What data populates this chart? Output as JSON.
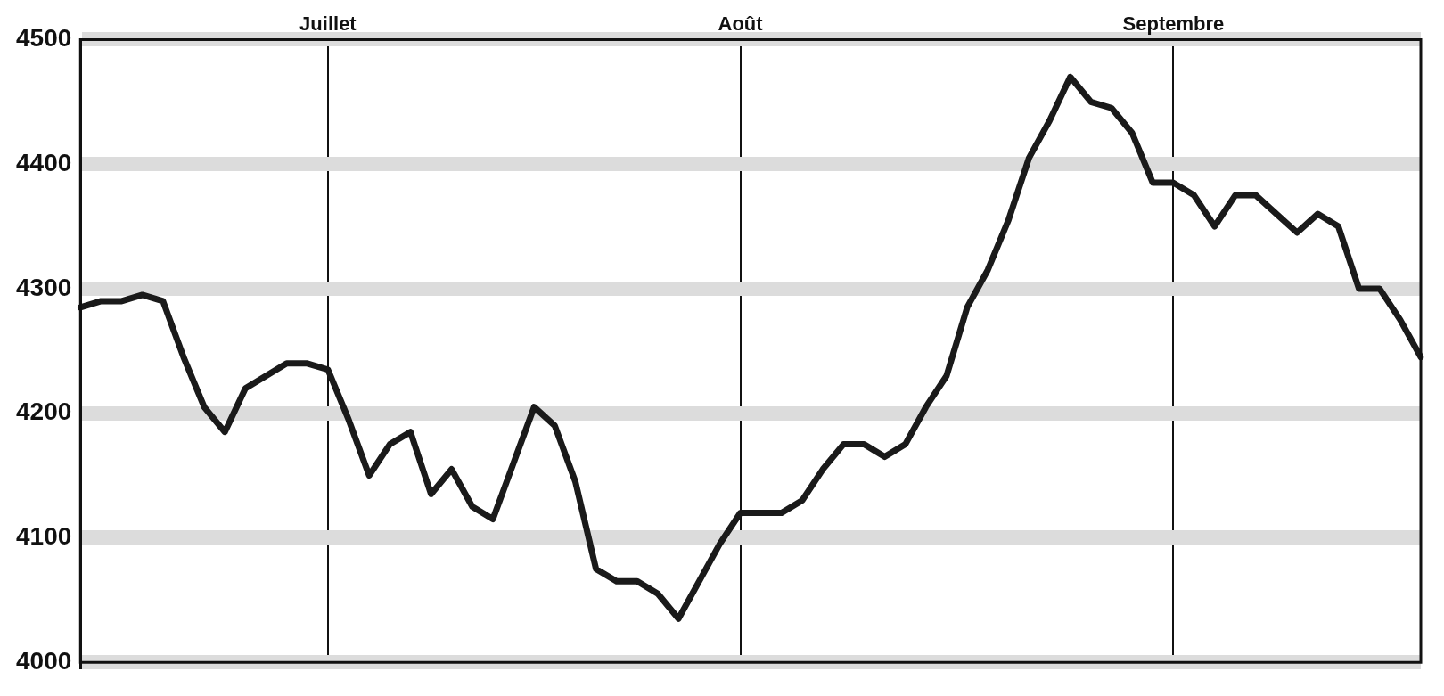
{
  "chart_data": {
    "type": "line",
    "categories": [
      null,
      null,
      null,
      null,
      null,
      null,
      null,
      null,
      null,
      null,
      null,
      null,
      "Juillet",
      null,
      null,
      null,
      null,
      null,
      null,
      null,
      null,
      null,
      null,
      null,
      null,
      null,
      null,
      null,
      null,
      null,
      null,
      null,
      "Août",
      null,
      null,
      null,
      null,
      null,
      null,
      null,
      null,
      null,
      null,
      null,
      null,
      null,
      null,
      null,
      null,
      null,
      null,
      null,
      null,
      "Septembre",
      null,
      null,
      null,
      null,
      null,
      null,
      null,
      null,
      null,
      null,
      null,
      null
    ],
    "series": [
      {
        "color": "#1a1a1a",
        "values": [
          4285,
          4290,
          4290,
          4295,
          4290,
          4245,
          4205,
          4185,
          4220,
          4230,
          4240,
          4240,
          4235,
          4195,
          4150,
          4175,
          4185,
          4135,
          4155,
          4125,
          4115,
          4160,
          4205,
          4190,
          4145,
          4075,
          4065,
          4065,
          4055,
          4035,
          4065,
          4095,
          4120,
          4120,
          4120,
          4130,
          4155,
          4175,
          4175,
          4165,
          4175,
          4205,
          4230,
          4285,
          4315,
          4355,
          4405,
          4435,
          4470,
          4450,
          4445,
          4425,
          4385,
          4385,
          4375,
          4350,
          4375,
          4375,
          4360,
          4345,
          4360,
          4350,
          4300,
          4300,
          4275,
          4245
        ]
      }
    ],
    "ylim": [
      4000,
      4500
    ],
    "yticks": [
      4000,
      4100,
      4200,
      4300,
      4400,
      4500
    ],
    "grid": true,
    "marker": "none",
    "line_style": "solid",
    "legend": false
  }
}
